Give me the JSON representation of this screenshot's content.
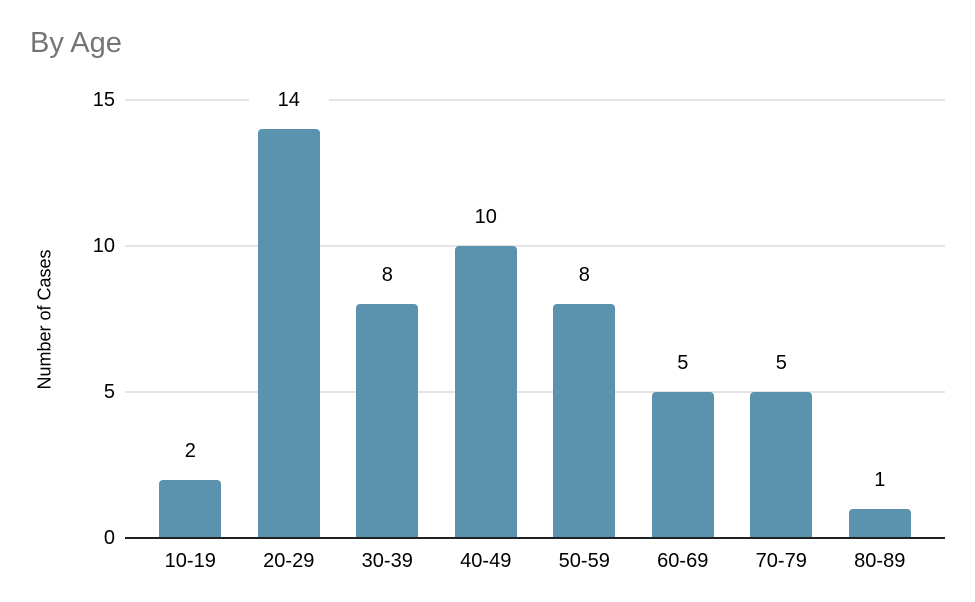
{
  "chart_data": {
    "type": "bar",
    "title": "By Age",
    "categories": [
      "10-19",
      "20-29",
      "30-39",
      "40-49",
      "50-59",
      "60-69",
      "70-79",
      "80-89"
    ],
    "values": [
      2,
      14,
      8,
      10,
      8,
      5,
      5,
      1
    ],
    "value_labels": [
      "2",
      "14",
      "8",
      "10",
      "8",
      "5",
      "5",
      "1"
    ],
    "xlabel": "",
    "ylabel": "Number of Cases",
    "ylim": [
      0,
      15
    ],
    "yticks": [
      0,
      5,
      10,
      15
    ],
    "grid": true,
    "legend": false,
    "colors": {
      "bar": "#5B92AD",
      "title_text": "#757575",
      "gridline": "#E4E4E4",
      "axis_line": "#212121",
      "label_text": "#000000",
      "background": "#FFFFFF"
    }
  }
}
